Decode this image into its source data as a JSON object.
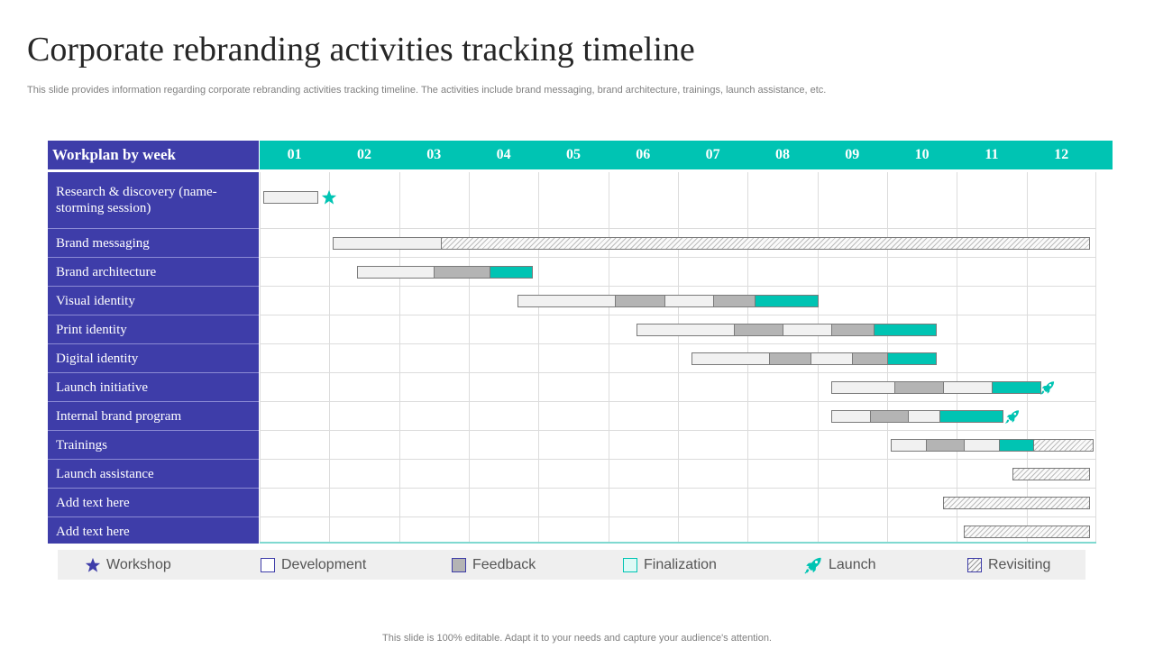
{
  "title": "Corporate rebranding activities tracking timeline",
  "subtitle": "This slide provides information regarding corporate rebranding activities tracking timeline. The activities include brand messaging, brand architecture, trainings, launch assistance, etc.",
  "header": {
    "label": "Workplan by week",
    "weeks": [
      "01",
      "02",
      "03",
      "04",
      "05",
      "06",
      "07",
      "08",
      "09",
      "10",
      "11",
      "12"
    ]
  },
  "colors": {
    "header_left": "#3e3da9",
    "header_right": "#00c4b3",
    "development": "#f1f1f1",
    "feedback": "#b4b4b4",
    "finalization": "#00c4b3",
    "workshop_marker": "#00c4b3",
    "launch_marker": "#00c4b3"
  },
  "rows": [
    {
      "label": "Research & discovery (name-storming session)",
      "segments": [
        {
          "type": "development",
          "start": 0.05,
          "end": 0.83
        }
      ],
      "marker": {
        "type": "star-icon",
        "at": 1.0
      }
    },
    {
      "label": "Brand messaging",
      "segments": [
        {
          "type": "development",
          "start": 1.05,
          "end": 2.6
        },
        {
          "type": "revisiting",
          "start": 2.6,
          "end": 11.9
        }
      ]
    },
    {
      "label": "Brand architecture",
      "segments": [
        {
          "type": "development",
          "start": 1.4,
          "end": 2.5
        },
        {
          "type": "feedback",
          "start": 2.5,
          "end": 3.3
        },
        {
          "type": "finalization",
          "start": 3.3,
          "end": 3.9
        }
      ]
    },
    {
      "label": "Visual identity",
      "segments": [
        {
          "type": "development",
          "start": 3.7,
          "end": 5.1
        },
        {
          "type": "feedback",
          "start": 5.1,
          "end": 5.8
        },
        {
          "type": "development",
          "start": 5.8,
          "end": 6.5
        },
        {
          "type": "feedback",
          "start": 6.5,
          "end": 7.1
        },
        {
          "type": "finalization",
          "start": 7.1,
          "end": 8.0
        }
      ]
    },
    {
      "label": "Print identity",
      "segments": [
        {
          "type": "development",
          "start": 5.4,
          "end": 6.8
        },
        {
          "type": "feedback",
          "start": 6.8,
          "end": 7.5
        },
        {
          "type": "development",
          "start": 7.5,
          "end": 8.2
        },
        {
          "type": "feedback",
          "start": 8.2,
          "end": 8.8
        },
        {
          "type": "finalization",
          "start": 8.8,
          "end": 9.7
        }
      ]
    },
    {
      "label": "Digital identity",
      "segments": [
        {
          "type": "development",
          "start": 6.2,
          "end": 7.3
        },
        {
          "type": "feedback",
          "start": 7.3,
          "end": 7.9
        },
        {
          "type": "development",
          "start": 7.9,
          "end": 8.5
        },
        {
          "type": "feedback",
          "start": 8.5,
          "end": 9.0
        },
        {
          "type": "finalization",
          "start": 9.0,
          "end": 9.7
        }
      ]
    },
    {
      "label": "Launch initiative",
      "segments": [
        {
          "type": "development",
          "start": 8.2,
          "end": 9.1
        },
        {
          "type": "feedback",
          "start": 9.1,
          "end": 9.8
        },
        {
          "type": "development",
          "start": 9.8,
          "end": 10.5
        },
        {
          "type": "finalization",
          "start": 10.5,
          "end": 11.2
        }
      ],
      "marker": {
        "type": "rocket-icon",
        "at": 11.3
      }
    },
    {
      "label": "Internal brand program",
      "segments": [
        {
          "type": "development",
          "start": 8.2,
          "end": 8.75
        },
        {
          "type": "feedback",
          "start": 8.75,
          "end": 9.3
        },
        {
          "type": "development",
          "start": 9.3,
          "end": 9.75
        },
        {
          "type": "finalization",
          "start": 9.75,
          "end": 10.65
        }
      ],
      "marker": {
        "type": "rocket-icon",
        "at": 10.8
      }
    },
    {
      "label": "Trainings",
      "segments": [
        {
          "type": "development",
          "start": 9.05,
          "end": 9.55
        },
        {
          "type": "feedback",
          "start": 9.55,
          "end": 10.1
        },
        {
          "type": "development",
          "start": 10.1,
          "end": 10.6
        },
        {
          "type": "finalization",
          "start": 10.6,
          "end": 11.1
        },
        {
          "type": "revisiting",
          "start": 11.1,
          "end": 11.95
        }
      ]
    },
    {
      "label": "Launch assistance",
      "segments": [
        {
          "type": "revisiting",
          "start": 10.8,
          "end": 11.9
        }
      ]
    },
    {
      "label": "Add text here",
      "segments": [
        {
          "type": "revisiting",
          "start": 9.8,
          "end": 11.9
        }
      ]
    },
    {
      "label": "Add text here",
      "segments": [
        {
          "type": "revisiting",
          "start": 10.1,
          "end": 11.9
        }
      ]
    }
  ],
  "legend": [
    {
      "label": "Workshop",
      "icon": "star-icon"
    },
    {
      "label": "Development",
      "icon": "development-swatch"
    },
    {
      "label": "Feedback",
      "icon": "feedback-swatch"
    },
    {
      "label": "Finalization",
      "icon": "finalization-swatch"
    },
    {
      "label": "Launch",
      "icon": "rocket-icon"
    },
    {
      "label": "Revisiting",
      "icon": "revisiting-swatch"
    }
  ],
  "footer": "This slide is 100% editable. Adapt it to your needs and capture your audience's attention."
}
